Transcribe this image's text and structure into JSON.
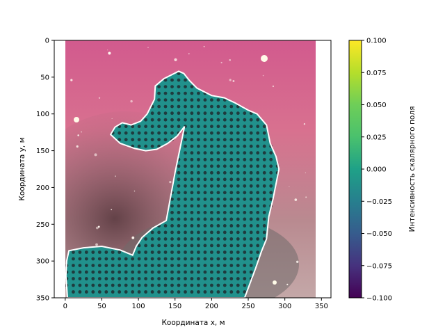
{
  "chart_data": {
    "type": "scatter",
    "title": "",
    "xlabel": "Координата x, м",
    "ylabel": "Координата y, м",
    "xlim": [
      -15,
      363
    ],
    "ylim": [
      350,
      0
    ],
    "y_inverted": true,
    "xticks": [
      "0",
      "50",
      "100",
      "150",
      "200",
      "250",
      "300",
      "350"
    ],
    "yticks": [
      "0",
      "50",
      "100",
      "150",
      "200",
      "250",
      "300",
      "350"
    ],
    "background": "nebula photograph (horsehead), pink sky with stars, dark dust silhouette",
    "scatter_spacing": 9,
    "scatter_value": 0.0,
    "region_outline_color": "#ffffff",
    "fill_color": "#21918c",
    "colorbar": {
      "label": "Интенсивность скалярного поля",
      "colormap": "viridis",
      "range": [
        -0.1,
        0.1
      ],
      "ticks": [
        "0.100",
        "0.075",
        "0.050",
        "0.025",
        "0.000",
        "−0.025",
        "−0.050",
        "−0.075",
        "−0.100"
      ]
    },
    "region_polygon": [
      [
        155,
        42
      ],
      [
        135,
        52
      ],
      [
        123,
        62
      ],
      [
        122,
        80
      ],
      [
        112,
        100
      ],
      [
        103,
        110
      ],
      [
        90,
        115
      ],
      [
        78,
        112
      ],
      [
        68,
        118
      ],
      [
        62,
        128
      ],
      [
        75,
        140
      ],
      [
        95,
        147
      ],
      [
        110,
        150
      ],
      [
        125,
        148
      ],
      [
        140,
        140
      ],
      [
        153,
        130
      ],
      [
        163,
        117
      ],
      [
        150,
        180
      ],
      [
        138,
        245
      ],
      [
        120,
        255
      ],
      [
        105,
        268
      ],
      [
        97,
        280
      ],
      [
        92,
        292
      ],
      [
        75,
        285
      ],
      [
        50,
        280
      ],
      [
        25,
        282
      ],
      [
        5,
        286
      ],
      [
        2,
        300
      ],
      [
        1,
        320
      ],
      [
        3,
        350
      ],
      [
        245,
        350
      ],
      [
        260,
        310
      ],
      [
        268,
        287
      ],
      [
        275,
        270
      ],
      [
        278,
        240
      ],
      [
        284,
        215
      ],
      [
        292,
        175
      ],
      [
        288,
        158
      ],
      [
        280,
        140
      ],
      [
        275,
        115
      ],
      [
        262,
        100
      ],
      [
        250,
        95
      ],
      [
        232,
        85
      ],
      [
        217,
        78
      ],
      [
        200,
        75
      ],
      [
        180,
        65
      ],
      [
        170,
        55
      ],
      [
        162,
        45
      ],
      [
        155,
        42
      ]
    ]
  }
}
